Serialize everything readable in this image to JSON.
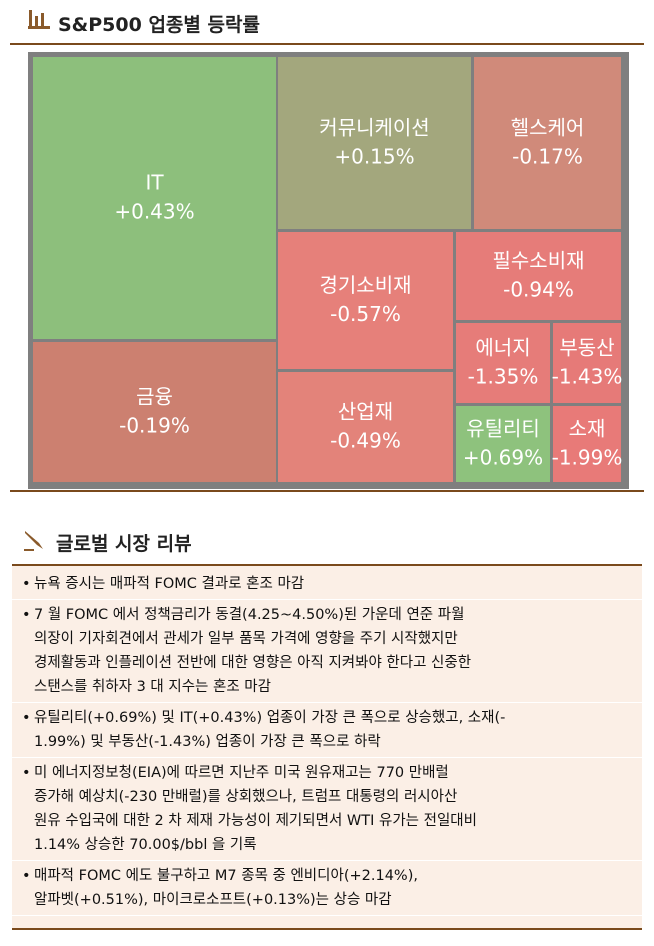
{
  "chart_data": {
    "type": "treemap",
    "title": "S&P500 업종별 등락률",
    "categories": [
      "IT",
      "금융",
      "커뮤니케이션",
      "헬스케어",
      "경기소비재",
      "산업재",
      "필수소비재",
      "에너지",
      "부동산",
      "유틸리티",
      "소재"
    ],
    "values": [
      0.43,
      -0.19,
      0.15,
      -0.17,
      -0.57,
      -0.49,
      -0.94,
      -1.35,
      -1.43,
      0.69,
      -1.99
    ],
    "value_labels": [
      "+0.43%",
      "-0.19%",
      "+0.15%",
      "-0.17%",
      "-0.57%",
      "-0.49%",
      "-0.94%",
      "-1.35%",
      "-1.43%",
      "+0.69%",
      "-1.99%"
    ],
    "colors": [
      "#8dbf7c",
      "#cc8070",
      "#a3a77d",
      "#d08a7a",
      "#e6807a",
      "#e3837a",
      "#e67c79",
      "#e67c79",
      "#e67a78",
      "#8ec27d",
      "#e87a78"
    ]
  },
  "review": {
    "title": "글로벌 시장 리뷰",
    "items": [
      [
        "뉴욕 증시는 매파적 FOMC 결과로 혼조 마감"
      ],
      [
        "7 월 FOMC 에서 정책금리가 동결(4.25~4.50%)된 가운데 연준 파월",
        "의장이 기자회견에서 관세가 일부 품목 가격에 영향을 주기 시작했지만",
        "경제활동과 인플레이션 전반에 대한 영향은 아직 지켜봐야 한다고 신중한",
        "스탠스를 취하자 3 대 지수는 혼조 마감"
      ],
      [
        "유틸리티(+0.69%) 및 IT(+0.43%) 업종이 가장 큰 폭으로 상승했고, 소재(-",
        "1.99%) 및 부동산(-1.43%) 업종이 가장 큰 폭으로 하락"
      ],
      [
        "미 에너지정보청(EIA)에 따르면 지난주 미국 원유재고는 770 만배럴",
        "증가해 예상치(-230 만배럴)를 상회했으나, 트럼프 대통령의 러시아산",
        "원유 수입국에 대한 2 차 제재 가능성이 제기되면서 WTI 유가는 전일대비",
        "1.14% 상승한 70.00$/bbl 을 기록"
      ],
      [
        "매파적 FOMC 에도 불구하고 M7 종목 중 엔비디아(+2.14%),",
        "알파벳(+0.51%), 마이크로소프트(+0.13%)는 상승 마감"
      ]
    ]
  }
}
